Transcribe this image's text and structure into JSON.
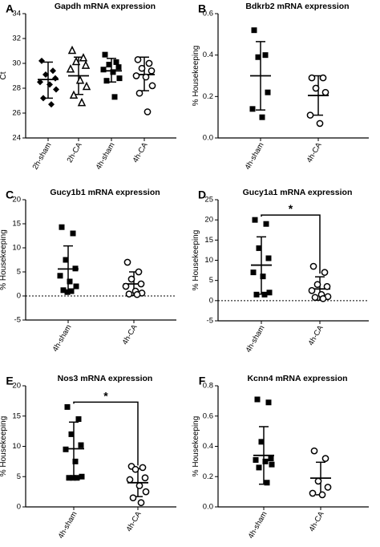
{
  "chart_data": [
    {
      "panel": "A",
      "type": "scatter",
      "title": "Gapdh mRNA expression",
      "ylabel": "Ct",
      "ylim": [
        24,
        34
      ],
      "yticks": [
        24,
        26,
        28,
        30,
        32,
        34
      ],
      "categories": [
        "2h-sham",
        "2h-CA",
        "4h-sham",
        "4h-CA"
      ],
      "series": [
        {
          "category": "2h-sham",
          "marker": "diamond",
          "values": [
            30.2,
            29.4,
            29.1,
            28.8,
            28.5,
            28.3,
            27.9,
            27.2,
            26.7
          ],
          "mean": 28.7,
          "sd_low": 27.2,
          "sd_high": 30.1
        },
        {
          "category": "2h-CA",
          "marker": "triangle-open",
          "values": [
            31.0,
            30.4,
            30.1,
            29.8,
            29.5,
            28.6,
            28.1,
            27.4,
            26.8
          ],
          "mean": 29.0,
          "sd_low": 27.5,
          "sd_high": 30.5
        },
        {
          "category": "4h-sham",
          "marker": "square",
          "values": [
            30.7,
            30.1,
            29.9,
            29.7,
            29.5,
            29.3,
            28.8,
            28.6,
            27.3
          ],
          "mean": 29.4,
          "sd_low": 28.5,
          "sd_high": 30.4
        },
        {
          "category": "4h-CA",
          "marker": "circle-open",
          "values": [
            30.3,
            30.0,
            29.6,
            29.4,
            29.0,
            28.9,
            28.2,
            27.6,
            26.1
          ],
          "mean": 29.1,
          "sd_low": 27.8,
          "sd_high": 30.5
        }
      ]
    },
    {
      "panel": "B",
      "type": "scatter",
      "title": "Bdkrb2  mRNA expression",
      "ylabel": "% Housekeeping",
      "ylim": [
        0,
        0.6
      ],
      "yticks": [
        "0.0",
        "0.2",
        "0.4",
        "0.6"
      ],
      "categories": [
        "4h-sham",
        "4h-CA"
      ],
      "series": [
        {
          "category": "4h-sham",
          "marker": "square",
          "values": [
            0.52,
            0.4,
            0.39,
            0.22,
            0.14,
            0.1
          ],
          "mean": 0.3,
          "sd_low": 0.135,
          "sd_high": 0.465
        },
        {
          "category": "4h-CA",
          "marker": "circle-open",
          "values": [
            0.29,
            0.29,
            0.24,
            0.22,
            0.11,
            0.07
          ],
          "mean": 0.205,
          "sd_low": 0.11,
          "sd_high": 0.3
        }
      ]
    },
    {
      "panel": "C",
      "type": "scatter",
      "title": "Gucy1b1 mRNA expression",
      "ylabel": "% Housekeeping",
      "ylim": [
        -5,
        20
      ],
      "yticks": [
        -5,
        0,
        5,
        10,
        15,
        20
      ],
      "zero_line": "dotted",
      "categories": [
        "4h-sham",
        "4h-CA"
      ],
      "series": [
        {
          "category": "4h-sham",
          "marker": "square",
          "values": [
            14.3,
            13.0,
            7.5,
            5.7,
            4.2,
            3.0,
            2.0,
            1.2,
            1.0,
            0.8
          ],
          "mean": 5.6,
          "sd_low": 0.9,
          "sd_high": 10.4
        },
        {
          "category": "4h-CA",
          "marker": "circle-open",
          "values": [
            7.0,
            5.0,
            3.5,
            2.5,
            2.0,
            1.0,
            0.6,
            0.4,
            0.3
          ],
          "mean": 2.5,
          "sd_low": 0.1,
          "sd_high": 5.0
        }
      ]
    },
    {
      "panel": "D",
      "type": "scatter",
      "title": "Gucy1a1 mRNA expression",
      "ylabel": "% Housekeeping",
      "ylim": [
        -5,
        25
      ],
      "yticks": [
        -5,
        0,
        5,
        10,
        15,
        20,
        25
      ],
      "zero_line": "dotted",
      "significance": "*",
      "categories": [
        "4h-sham",
        "4h-CA"
      ],
      "series": [
        {
          "category": "4h-sham",
          "marker": "square",
          "values": [
            20.0,
            19.0,
            13.0,
            10.5,
            7.0,
            6.0,
            2.0,
            1.5,
            1.5
          ],
          "mean": 8.8,
          "sd_low": 1.6,
          "sd_high": 15.8
        },
        {
          "category": "4h-CA",
          "marker": "circle-open",
          "values": [
            8.5,
            7.0,
            4.0,
            3.5,
            2.5,
            1.5,
            1.0,
            0.8,
            0.5
          ],
          "mean": 2.9,
          "sd_low": 0.1,
          "sd_high": 5.9
        }
      ]
    },
    {
      "panel": "E",
      "type": "scatter",
      "title": "Nos3 mRNA expression",
      "ylabel": "% Housekeeping",
      "ylim": [
        0,
        20
      ],
      "yticks": [
        0,
        5,
        10,
        15,
        20
      ],
      "significance": "*",
      "categories": [
        "4h-sham",
        "4h-CA"
      ],
      "series": [
        {
          "category": "4h-sham",
          "marker": "square",
          "values": [
            16.5,
            14.5,
            12.0,
            10.2,
            9.5,
            7.5,
            5.0,
            4.8,
            4.8,
            4.8
          ],
          "mean": 9.6,
          "sd_low": 5.1,
          "sd_high": 14.0
        },
        {
          "category": "4h-CA",
          "marker": "circle-open",
          "values": [
            6.7,
            6.5,
            6.2,
            4.8,
            4.5,
            3.5,
            2.5,
            1.5,
            0.7
          ],
          "mean": 4.0,
          "sd_low": 1.7,
          "sd_high": 6.3
        }
      ]
    },
    {
      "panel": "F",
      "type": "scatter",
      "title": "Kcnn4 mRNA expression",
      "ylabel": "% Housekeeping",
      "ylim": [
        0,
        0.8
      ],
      "yticks": [
        "0.0",
        "0.2",
        "0.4",
        "0.6",
        "0.8"
      ],
      "categories": [
        "4h-sham",
        "4h-CA"
      ],
      "series": [
        {
          "category": "4h-sham",
          "marker": "square",
          "values": [
            0.71,
            0.69,
            0.43,
            0.32,
            0.31,
            0.3,
            0.28,
            0.26,
            0.16
          ],
          "mean": 0.34,
          "sd_low": 0.15,
          "sd_high": 0.53
        },
        {
          "category": "4h-CA",
          "marker": "circle-open",
          "values": [
            0.37,
            0.32,
            0.17,
            0.13,
            0.09,
            0.08
          ],
          "mean": 0.19,
          "sd_low": 0.08,
          "sd_high": 0.295
        }
      ]
    }
  ]
}
